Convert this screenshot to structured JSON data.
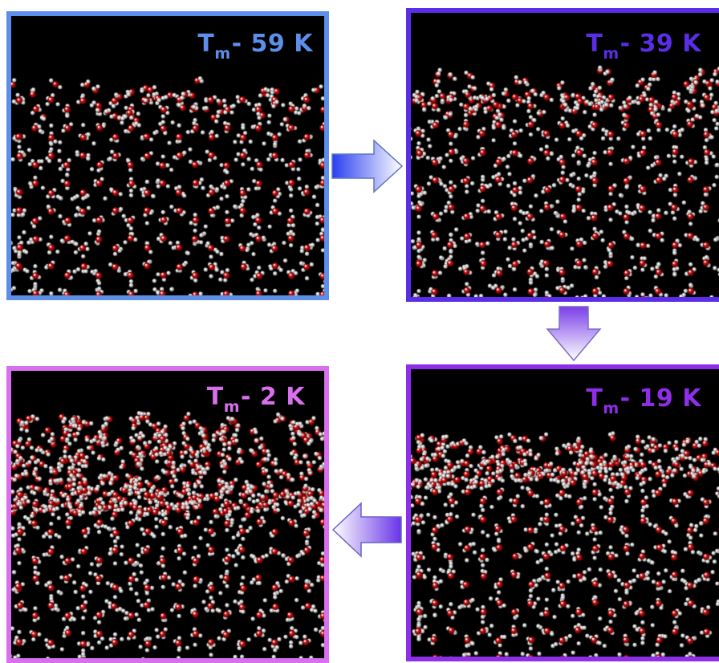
{
  "panels": [
    {
      "id": "p1",
      "label_main": "T",
      "label_sub": "m",
      "label_rest": "- 59 K",
      "frame_color": "#5d8fea",
      "disorder_level": 0.05
    },
    {
      "id": "p2",
      "label_main": "T",
      "label_sub": "m",
      "label_rest": "- 39 K",
      "frame_color": "#5a2ee6",
      "disorder_level": 0.12
    },
    {
      "id": "p3",
      "label_main": "T",
      "label_sub": "m",
      "label_rest": "- 19 K",
      "frame_color": "#8e2ee8",
      "disorder_level": 0.2
    },
    {
      "id": "p4",
      "label_main": "T",
      "label_sub": "m",
      "label_rest": "- 2 K",
      "frame_color": "#d870ee",
      "disorder_level": 0.33
    }
  ],
  "arrows": [
    {
      "name": "arrow-right",
      "direction": "right",
      "from": "Tₘ- 59 K",
      "to": "Tₘ- 39 K"
    },
    {
      "name": "arrow-down",
      "direction": "down",
      "from": "Tₘ- 39 K",
      "to": "Tₘ- 19 K"
    },
    {
      "name": "arrow-left",
      "direction": "left",
      "from": "Tₘ- 19 K",
      "to": "Tₘ- 2 K"
    }
  ],
  "colors": {
    "oxygen": "#d01010",
    "hydrogen": "#e8e8e8",
    "background": "#000000"
  }
}
